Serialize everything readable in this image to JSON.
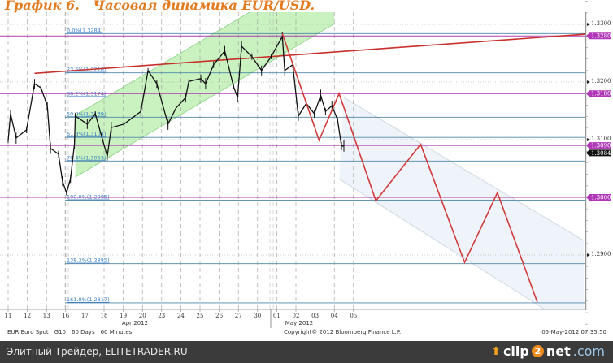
{
  "title": "График 6.   Часовая динамика EUR/USD.",
  "chart_data": {
    "type": "line",
    "title": "График 6.   Часовая динамика EUR/USD.",
    "instrument": "EUR  Euro Spot",
    "info": [
      "EUR  Euro Spot",
      "G10",
      "60 Days",
      "60 Minutes"
    ],
    "copyright": "Copyright© 2012 Bloomberg Finance L.P.",
    "timestamp": "05-May-2012 07:35:50",
    "x_ticks": [
      "11",
      "12",
      "13",
      "16",
      "17",
      "18",
      "19",
      "20",
      "23",
      "24",
      "25",
      "26",
      "27",
      "30",
      "01",
      "02",
      "03",
      "04",
      "05"
    ],
    "x_months": [
      "Apr 2012",
      "May 2012"
    ],
    "y_ticks": [
      1.33,
      1.32,
      1.31,
      1.29
    ],
    "y_tick_labels": [
      "1.3300",
      "1.3200",
      "1.3100",
      "1.2900"
    ],
    "ylim": [
      1.277,
      1.334
    ],
    "grid": true,
    "price_series": [
      [
        "04-11 00:00",
        1.3098
      ],
      [
        "04-11 03:00",
        1.3145
      ],
      [
        "04-11 10:00",
        1.3103
      ],
      [
        "04-11 23:00",
        1.3117
      ],
      [
        "04-12 09:00",
        1.3197
      ],
      [
        "04-12 17:00",
        1.319
      ],
      [
        "04-13 01:00",
        1.3159
      ],
      [
        "04-13 05:00",
        1.3085
      ],
      [
        "04-13 15:00",
        1.3075
      ],
      [
        "04-13 20:00",
        1.3028
      ],
      [
        "04-16 01:00",
        1.3008
      ],
      [
        "04-16 06:00",
        1.3032
      ],
      [
        "04-16 11:00",
        1.3093
      ],
      [
        "04-16 12:00",
        1.3141
      ],
      [
        "04-17 03:00",
        1.3127
      ],
      [
        "04-17 13:00",
        1.3145
      ],
      [
        "04-18 04:00",
        1.3071
      ],
      [
        "04-18 09:00",
        1.3121
      ],
      [
        "04-19 01:00",
        1.3127
      ],
      [
        "04-19 22:00",
        1.3149
      ],
      [
        "04-20 07:00",
        1.322
      ],
      [
        "04-20 18:00",
        1.3197
      ],
      [
        "04-23 08:00",
        1.3127
      ],
      [
        "04-23 18:00",
        1.3155
      ],
      [
        "04-24 06:00",
        1.3173
      ],
      [
        "04-24 10:00",
        1.3201
      ],
      [
        "04-25 01:00",
        1.3206
      ],
      [
        "04-25 07:00",
        1.3197
      ],
      [
        "04-25 17:00",
        1.323
      ],
      [
        "04-26 07:00",
        1.3254
      ],
      [
        "04-26 18:00",
        1.3192
      ],
      [
        "04-26 23:00",
        1.3173
      ],
      [
        "04-27 04:00",
        1.3262
      ],
      [
        "04-27 17:00",
        1.3244
      ],
      [
        "04-30 05:00",
        1.322
      ],
      [
        "04-30 17:00",
        1.3244
      ],
      [
        "05-01 07:00",
        1.3279
      ],
      [
        "05-01 10:00",
        1.322
      ],
      [
        "05-01 20:00",
        1.323
      ],
      [
        "05-02 03:00",
        1.3141
      ],
      [
        "05-02 13:00",
        1.3163
      ],
      [
        "05-02 23:00",
        1.3145
      ],
      [
        "05-03 07:00",
        1.3177
      ],
      [
        "05-03 13:00",
        1.3149
      ],
      [
        "05-03 21:00",
        1.3159
      ],
      [
        "05-04 04:00",
        1.3135
      ],
      [
        "05-04 09:00",
        1.3089
      ],
      [
        "05-04 12:00",
        1.3089
      ]
    ],
    "forecast_zigzag": [
      [
        "05-01 07:00",
        1.3284
      ],
      [
        "05-03 05:00",
        1.3099
      ],
      [
        "05-04 06:00",
        1.318
      ],
      [
        "05-07 04:00",
        1.2994
      ],
      [
        "05-09 12:00",
        1.3092
      ],
      [
        "05-11 19:00",
        1.2887
      ],
      [
        "05-15 12:00",
        1.3008
      ],
      [
        "05-17 14:00",
        1.2818
      ]
    ],
    "trendline": [
      [
        "04-12 09:00",
        1.3215
      ],
      [
        "05-22 02:00",
        1.3283
      ]
    ],
    "rising_channel": {
      "upper": [
        [
          "04-16 12:00",
          1.3142
        ],
        [
          "05-04 00:00",
          1.3408
        ]
      ],
      "lower": [
        [
          "04-16 12:00",
          1.3035
        ],
        [
          "05-04 00:00",
          1.3301
        ]
      ]
    },
    "falling_channel": {
      "upper": [
        [
          "05-04 12:00",
          1.3173
        ],
        [
          "05-22 00:00",
          1.2925
        ]
      ],
      "lower": [
        [
          "05-04 06:00",
          1.3032
        ],
        [
          "05-22 00:00",
          1.2763
        ]
      ]
    },
    "fibonacci": [
      {
        "label": "0.0%(1.3284)",
        "price": 1.3284
      },
      {
        "label": "23.6%(1.3216)",
        "price": 1.3216
      },
      {
        "label": "38.2%(1.3174)",
        "price": 1.3174
      },
      {
        "label": "50.0%(1.3139)",
        "price": 1.3139
      },
      {
        "label": "61.8%(1.3104)",
        "price": 1.3104
      },
      {
        "label": "76.4%(1.3063)",
        "price": 1.3063
      },
      {
        "label": "100.0%(1.2995)",
        "price": 1.2995
      },
      {
        "label": "138.2%(1.2885)",
        "price": 1.2885
      },
      {
        "label": "161.8%(1.2817)",
        "price": 1.2817
      }
    ],
    "levels": [
      {
        "label": "1.3280",
        "price": 1.328
      },
      {
        "label": "1.3180",
        "price": 1.318
      },
      {
        "label": "1.3090",
        "price": 1.309
      },
      {
        "label": "1.3000",
        "price": 1.3
      }
    ],
    "last_price": {
      "label": "1.3084",
      "price": 1.3084
    },
    "colors": {
      "price": "#111111",
      "zigzag": "#d23a3a",
      "trendline": "#c8302c",
      "level": "#b23cb2",
      "fib": "#4f86a8",
      "fib_text": "#3b7fc4",
      "rising_channel": "#c9f2c0",
      "falling_channel": "#eef4fa"
    }
  },
  "footer": {
    "text": "Элитный Трейдер, ELITETRADER.RU",
    "logo": "clip2net.com",
    "logo_parts": [
      "clip",
      "2",
      "net",
      ".com"
    ]
  }
}
